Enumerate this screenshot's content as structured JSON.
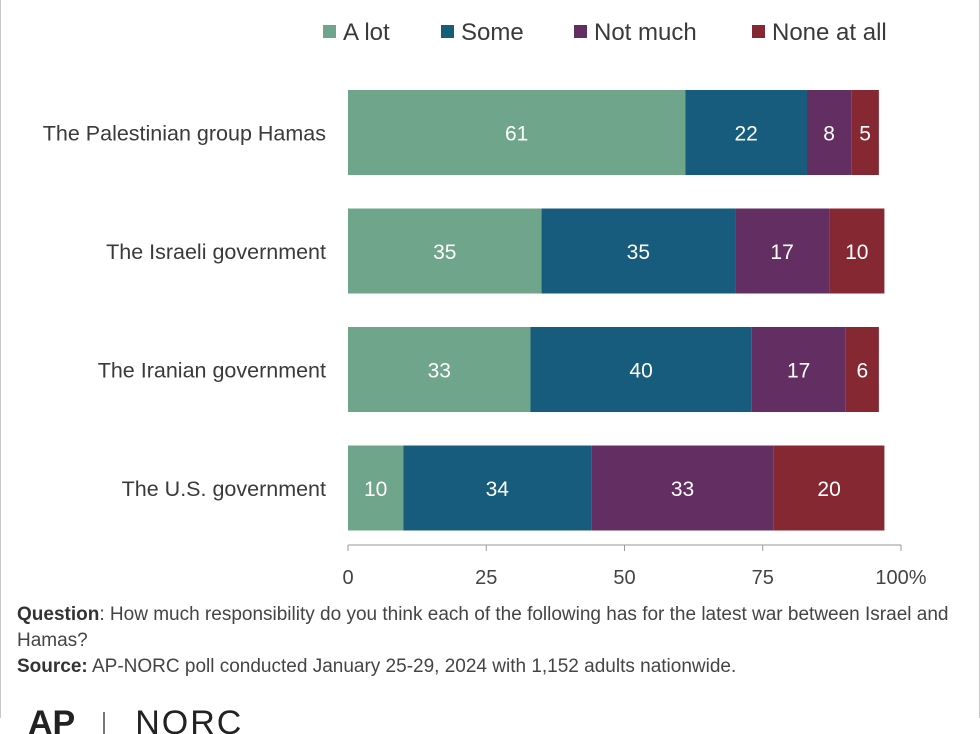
{
  "chart_data": {
    "type": "bar",
    "orientation": "horizontal",
    "stacked": true,
    "categories": [
      "The Palestinian group Hamas",
      "The Israeli government",
      "The Iranian government",
      "The U.S. government"
    ],
    "series": [
      {
        "name": "A lot",
        "color": "#6fa58a",
        "values": [
          61,
          35,
          33,
          10
        ]
      },
      {
        "name": "Some",
        "color": "#175c7c",
        "values": [
          22,
          35,
          40,
          34
        ]
      },
      {
        "name": "Not much",
        "color": "#632f63",
        "values": [
          8,
          17,
          17,
          33
        ]
      },
      {
        "name": "None at all",
        "color": "#862832",
        "values": [
          5,
          10,
          6,
          20
        ]
      }
    ],
    "x_ticks": [
      "0",
      "25",
      "50",
      "75",
      "100%"
    ],
    "xlim": [
      0,
      100
    ],
    "legend_position": "top-right",
    "grid": false
  },
  "notes": {
    "question_label": "Question",
    "question_text": ": How much responsibility do you think each of the following has for the latest war between Israel and Hamas?",
    "source_label": "Source:",
    "source_text": " AP-NORC poll conducted January 25-29, 2024 with 1,152 adults nationwide."
  },
  "logo": {
    "left": "AP",
    "right": "NORC"
  }
}
